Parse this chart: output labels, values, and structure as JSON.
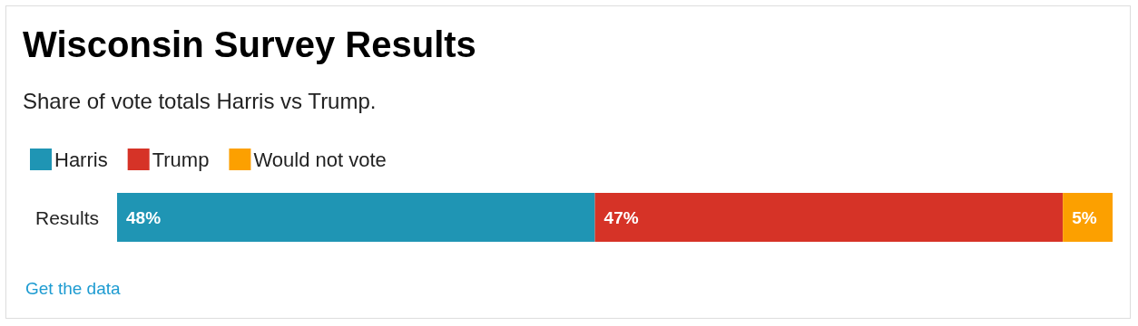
{
  "chart_data": {
    "type": "bar",
    "orientation": "horizontal",
    "stacked": true,
    "title": "Wisconsin Survey Results",
    "subtitle": "Share of vote totals Harris vs Trump.",
    "categories": [
      "Results"
    ],
    "series": [
      {
        "name": "Harris",
        "color": "#1f95b4",
        "values": [
          48
        ],
        "value_labels": [
          "48%"
        ]
      },
      {
        "name": "Trump",
        "color": "#d63327",
        "values": [
          47
        ],
        "value_labels": [
          "47%"
        ]
      },
      {
        "name": "Would not vote",
        "color": "#fca000",
        "values": [
          5
        ],
        "value_labels": [
          "5%"
        ]
      }
    ],
    "legend": "top left",
    "annotations": [
      "Get the data"
    ]
  }
}
